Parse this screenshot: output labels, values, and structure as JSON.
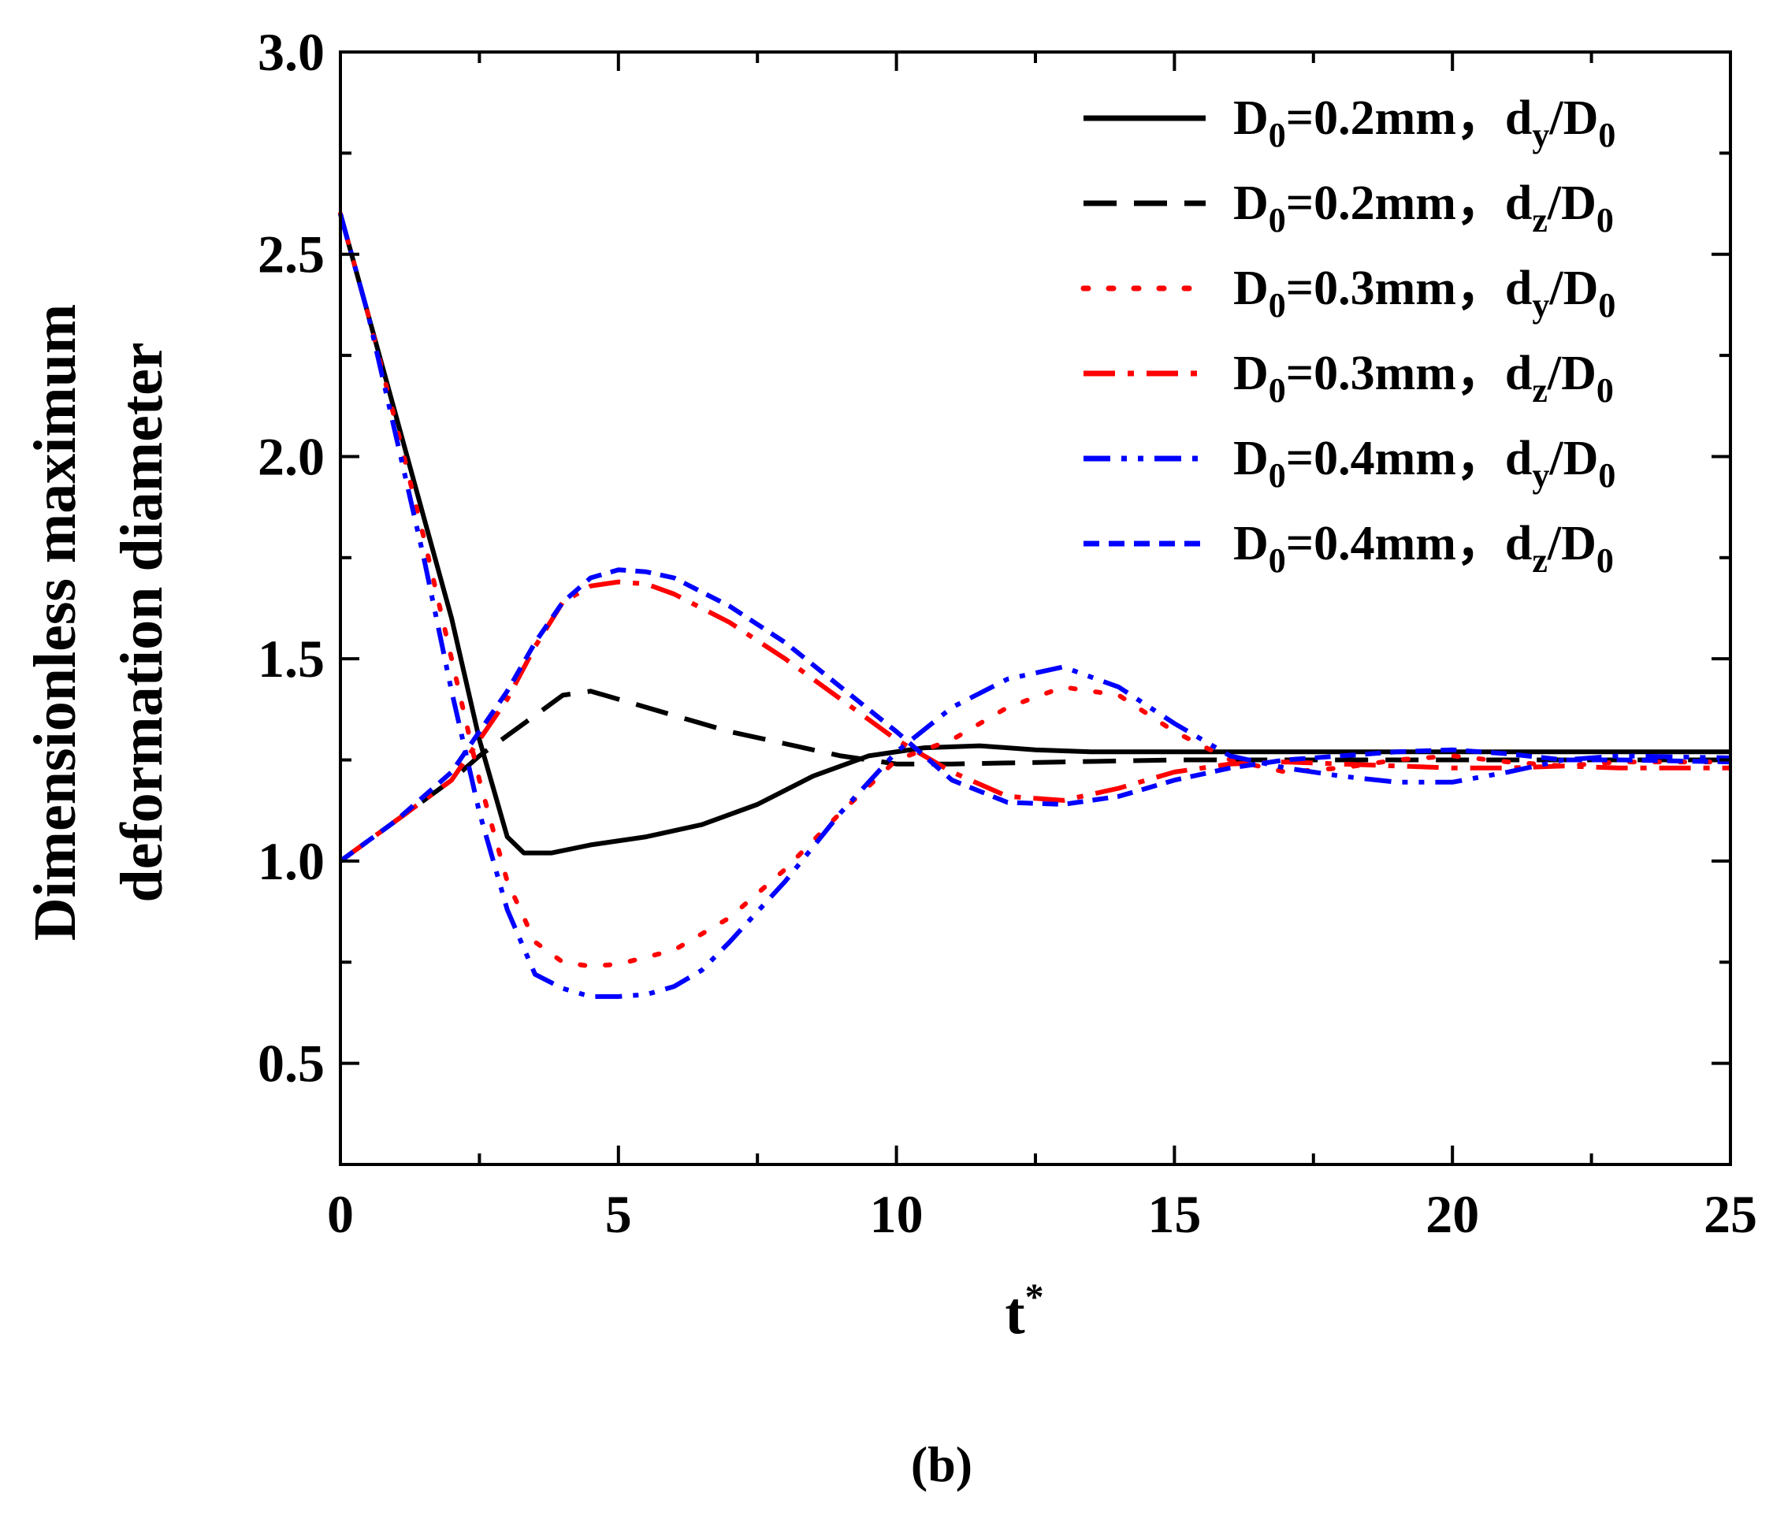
{
  "chart_data": {
    "type": "line",
    "panel_label": "(b)",
    "xlabel": "t",
    "xlabel_sup": "*",
    "ylabel": [
      "Dimensionless maximum",
      "deformation diameter"
    ],
    "xlim": [
      0,
      25
    ],
    "ylim": [
      0.25,
      3.0
    ],
    "xticks": [
      0,
      5,
      10,
      15,
      20,
      25
    ],
    "xtick_labels": [
      "0",
      "5",
      "10",
      "15",
      "20",
      "25"
    ],
    "yticks": [
      0.5,
      1.0,
      1.5,
      2.0,
      2.5,
      3.0
    ],
    "ytick_labels": [
      "0.5",
      "1.0",
      "1.5",
      "2.0",
      "2.5",
      "3.0"
    ],
    "grid": false,
    "legend_position": "top-right",
    "series": [
      {
        "name": "D0=0.2mm, dy/D0",
        "label_main": "D",
        "label_sub1": "0",
        "label_mid": "=0.2mm，",
        "label_d": "d",
        "label_sub2": "y",
        "label_slash": "/D",
        "label_sub3": "0",
        "color": "#000000",
        "style": "solid",
        "x": [
          0,
          0.5,
          1,
          1.5,
          2,
          2.5,
          3,
          3.3,
          3.8,
          4.5,
          5.5,
          6.5,
          7.5,
          8.5,
          9.5,
          10.5,
          11.5,
          12.5,
          13.5,
          15,
          17,
          20,
          25
        ],
        "y": [
          2.6,
          2.35,
          2.1,
          1.85,
          1.6,
          1.3,
          1.06,
          1.02,
          1.02,
          1.04,
          1.06,
          1.09,
          1.14,
          1.21,
          1.26,
          1.28,
          1.285,
          1.275,
          1.27,
          1.27,
          1.27,
          1.27,
          1.27
        ]
      },
      {
        "name": "D0=0.2mm, dz/D0",
        "label_main": "D",
        "label_sub1": "0",
        "label_mid": "=0.2mm，",
        "label_d": "d",
        "label_sub2": "z",
        "label_slash": "/D",
        "label_sub3": "0",
        "color": "#000000",
        "style": "dash",
        "x": [
          0,
          0.5,
          1,
          1.5,
          2,
          2.5,
          3,
          3.5,
          4,
          4.5,
          5,
          6,
          7,
          8,
          9,
          10,
          11,
          13,
          15,
          17,
          20,
          25
        ],
        "y": [
          1.0,
          1.05,
          1.1,
          1.15,
          1.2,
          1.26,
          1.31,
          1.36,
          1.41,
          1.42,
          1.4,
          1.36,
          1.32,
          1.29,
          1.26,
          1.24,
          1.24,
          1.245,
          1.25,
          1.25,
          1.25,
          1.25
        ]
      },
      {
        "name": "D0=0.3mm, dy/D0",
        "label_main": "D",
        "label_sub1": "0",
        "label_mid": "=0.3mm，",
        "label_d": "d",
        "label_sub2": "y",
        "label_slash": "/D",
        "label_sub3": "0",
        "color": "#ff0000",
        "style": "dot",
        "x": [
          0,
          0.5,
          1,
          1.5,
          2,
          2.5,
          3,
          3.5,
          4,
          4.5,
          5,
          6,
          7,
          8,
          9,
          10,
          11,
          12,
          13,
          14,
          15,
          16,
          17,
          18,
          19,
          20,
          21,
          22,
          23,
          25
        ],
        "y": [
          2.6,
          2.35,
          2.08,
          1.8,
          1.5,
          1.2,
          0.95,
          0.8,
          0.75,
          0.74,
          0.745,
          0.78,
          0.86,
          0.98,
          1.12,
          1.25,
          1.3,
          1.38,
          1.43,
          1.41,
          1.32,
          1.25,
          1.22,
          1.23,
          1.25,
          1.26,
          1.245,
          1.235,
          1.245,
          1.245
        ]
      },
      {
        "name": "D0=0.3mm, dz/D0",
        "label_main": "D",
        "label_sub1": "0",
        "label_mid": "=0.3mm，",
        "label_d": "d",
        "label_sub2": "z",
        "label_slash": "/D",
        "label_sub3": "0",
        "color": "#ff0000",
        "style": "dashdot",
        "x": [
          0,
          0.5,
          1,
          1.5,
          2,
          2.5,
          3,
          3.5,
          4,
          4.5,
          5,
          5.5,
          6,
          7,
          8,
          9,
          10,
          11,
          12,
          13,
          14,
          15,
          16,
          17,
          18,
          19,
          20,
          21,
          22,
          23,
          25
        ],
        "y": [
          1.0,
          1.05,
          1.1,
          1.15,
          1.2,
          1.3,
          1.4,
          1.53,
          1.64,
          1.68,
          1.69,
          1.685,
          1.66,
          1.59,
          1.5,
          1.4,
          1.3,
          1.22,
          1.16,
          1.15,
          1.18,
          1.22,
          1.24,
          1.245,
          1.24,
          1.235,
          1.23,
          1.23,
          1.235,
          1.23,
          1.23
        ]
      },
      {
        "name": "D0=0.4mm, dy/D0",
        "label_main": "D",
        "label_sub1": "0",
        "label_mid": "=0.4mm，",
        "label_d": "d",
        "label_sub2": "y",
        "label_slash": "/D",
        "label_sub3": "0",
        "color": "#0000ff",
        "style": "dashdotdot",
        "x": [
          0,
          0.5,
          1,
          1.5,
          2,
          2.5,
          3,
          3.5,
          4,
          4.5,
          5,
          5.5,
          6,
          6.5,
          7,
          8,
          9,
          10,
          11,
          12,
          13,
          14,
          15,
          16,
          17,
          18,
          19,
          20,
          21,
          22,
          23,
          25
        ],
        "y": [
          2.6,
          2.35,
          2.05,
          1.75,
          1.42,
          1.12,
          0.88,
          0.72,
          0.685,
          0.665,
          0.665,
          0.67,
          0.69,
          0.73,
          0.8,
          0.95,
          1.12,
          1.27,
          1.38,
          1.45,
          1.48,
          1.43,
          1.34,
          1.26,
          1.23,
          1.21,
          1.195,
          1.195,
          1.22,
          1.25,
          1.26,
          1.255
        ]
      },
      {
        "name": "D0=0.4mm, dz/D0",
        "label_main": "D",
        "label_sub1": "0",
        "label_mid": "=0.4mm，",
        "label_d": "d",
        "label_sub2": "z",
        "label_slash": "/D",
        "label_sub3": "0",
        "color": "#0000ff",
        "style": "shortdash",
        "x": [
          0,
          0.5,
          1,
          1.5,
          2,
          2.5,
          3,
          3.5,
          4,
          4.5,
          5,
          5.5,
          6,
          7,
          8,
          9,
          10,
          11,
          12,
          13,
          14,
          15,
          16,
          17,
          18,
          19,
          20,
          21,
          22,
          23,
          25
        ],
        "y": [
          1.0,
          1.05,
          1.1,
          1.16,
          1.22,
          1.32,
          1.42,
          1.54,
          1.64,
          1.7,
          1.72,
          1.715,
          1.7,
          1.63,
          1.54,
          1.43,
          1.32,
          1.2,
          1.145,
          1.14,
          1.16,
          1.2,
          1.23,
          1.25,
          1.26,
          1.27,
          1.275,
          1.265,
          1.25,
          1.25,
          1.245
        ]
      }
    ]
  }
}
